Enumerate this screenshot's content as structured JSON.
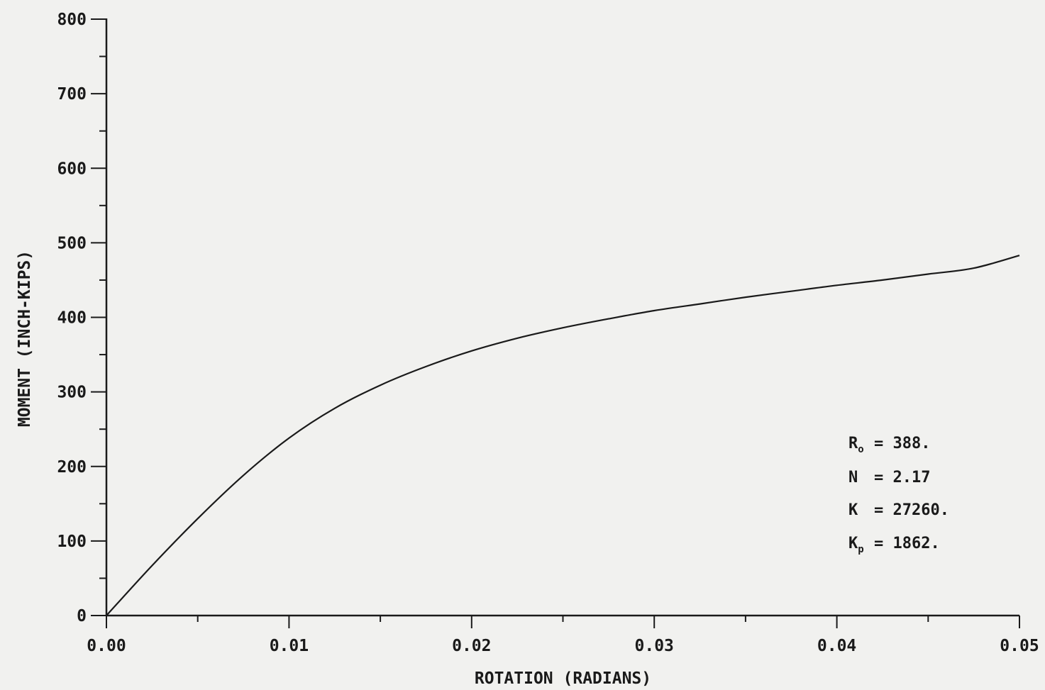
{
  "chart_data": {
    "type": "line",
    "title": "",
    "xlabel": "ROTATION (RADIANS)",
    "ylabel": "MOMENT (INCH-KIPS)",
    "xlim": [
      0,
      0.05
    ],
    "ylim": [
      0,
      800
    ],
    "x_ticks": [
      "0.00",
      "0.01",
      "0.02",
      "0.03",
      "0.04",
      "0.05"
    ],
    "y_ticks": [
      "0",
      "100",
      "200",
      "300",
      "400",
      "500",
      "600",
      "700",
      "800"
    ],
    "grid": false,
    "series": [
      {
        "x": [
          0,
          0.0025,
          0.005,
          0.0075,
          0.01,
          0.0125,
          0.015,
          0.0175,
          0.02,
          0.0225,
          0.025,
          0.0275,
          0.03,
          0.0325,
          0.035,
          0.0375,
          0.04,
          0.0425,
          0.045,
          0.0475,
          0.05
        ],
        "y": [
          0,
          67,
          130,
          188,
          238,
          278,
          309,
          334,
          355,
          372,
          386,
          398,
          409,
          418,
          427,
          435,
          443,
          450,
          458,
          466,
          483
        ]
      }
    ],
    "annotations": [
      {
        "label": "R",
        "sub": "o",
        "value": "= 388."
      },
      {
        "label": "N",
        "sub": "",
        "value": "= 2.17"
      },
      {
        "label": "K",
        "sub": "",
        "value": "= 27260."
      },
      {
        "label": "K",
        "sub": "p",
        "value": "= 1862."
      }
    ],
    "colors": {
      "line": "#1a1a1a",
      "background": "#f1f1ef"
    }
  }
}
